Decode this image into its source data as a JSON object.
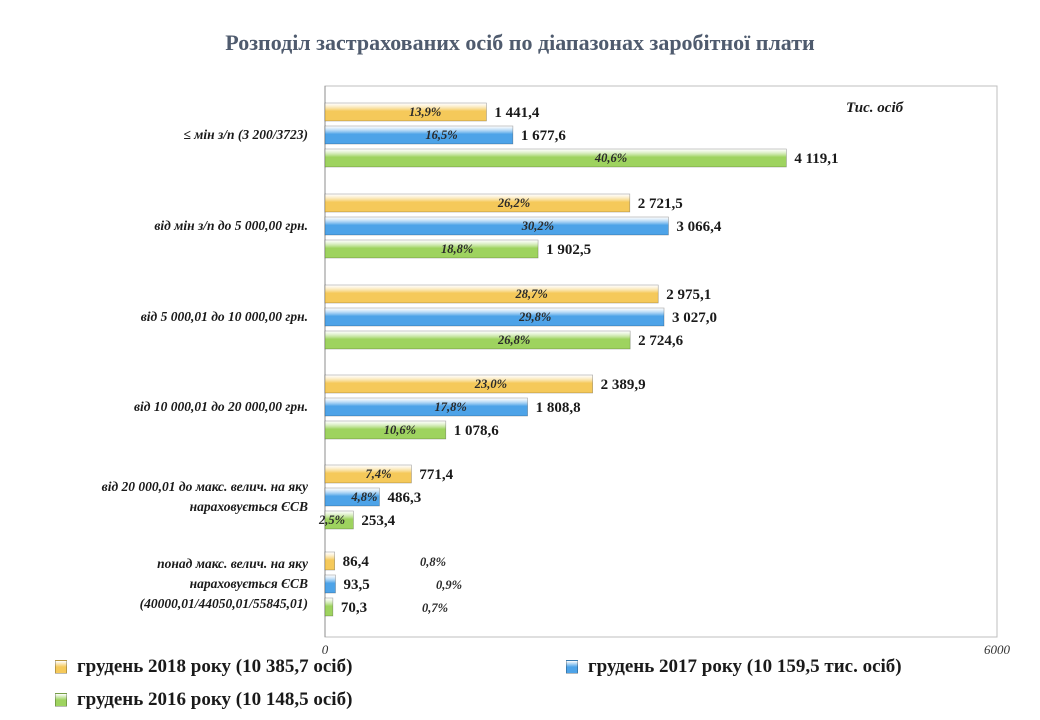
{
  "chart_data": {
    "type": "bar",
    "orientation": "horizontal",
    "title": "Розподіл застрахованих осіб по діапазонах заробітної плати",
    "unit_label": "Тис. осіб",
    "xlim": [
      0,
      6000
    ],
    "x_ticks": [
      "0",
      "6000"
    ],
    "categories": [
      [
        "≤ мін з/п (3 200/3723)"
      ],
      [
        "від мін з/п до 5 000,00 грн."
      ],
      [
        "від 5 000,01 до 10 000,00 грн."
      ],
      [
        "від 10 000,01 до 20 000,00 грн."
      ],
      [
        "від 20 000,01 до макс. велич. на яку",
        "нараховується ЄСВ"
      ],
      [
        "понад  макс. велич. на яку",
        "нараховується ЄСВ",
        "(40000,01/44050,01/55845,01)"
      ]
    ],
    "series": [
      {
        "name": "грудень 2018 року (10 385,7 осіб)",
        "color": "#f5c95a",
        "values": [
          1441.4,
          2721.5,
          2975.1,
          2389.9,
          771.4,
          86.4
        ],
        "value_labels": [
          "1 441,4",
          "2 721,5",
          "2 975,1",
          "2 389,9",
          "771,4",
          "86,4"
        ],
        "pct_labels": [
          "13,9%",
          "26,2%",
          "28,7%",
          "23,0%",
          "7,4%",
          "0,8%"
        ]
      },
      {
        "name": "грудень 2017 року (10 159,5 тис. осіб)",
        "color": "#4da3e8",
        "values": [
          1677.6,
          3066.4,
          3027.0,
          1808.8,
          486.3,
          93.5
        ],
        "value_labels": [
          "1 677,6",
          "3 066,4",
          "3 027,0",
          "1 808,8",
          "486,3",
          "93,5"
        ],
        "pct_labels": [
          "16,5%",
          "30,2%",
          "29,8%",
          "17,8%",
          "4,8%",
          "0,9%"
        ]
      },
      {
        "name": "грудень 2016 року (10 148,5 осіб)",
        "color": "#9ed35f",
        "values": [
          4119.1,
          1902.5,
          2724.6,
          1078.6,
          253.4,
          70.3
        ],
        "value_labels": [
          "4 119,1",
          "1 902,5",
          "2 724,6",
          "1 078,6",
          "253,4",
          "70,3"
        ],
        "pct_labels": [
          "40,6%",
          "18,8%",
          "26,8%",
          "10,6%",
          "2,5%",
          "0,7%"
        ]
      }
    ]
  }
}
